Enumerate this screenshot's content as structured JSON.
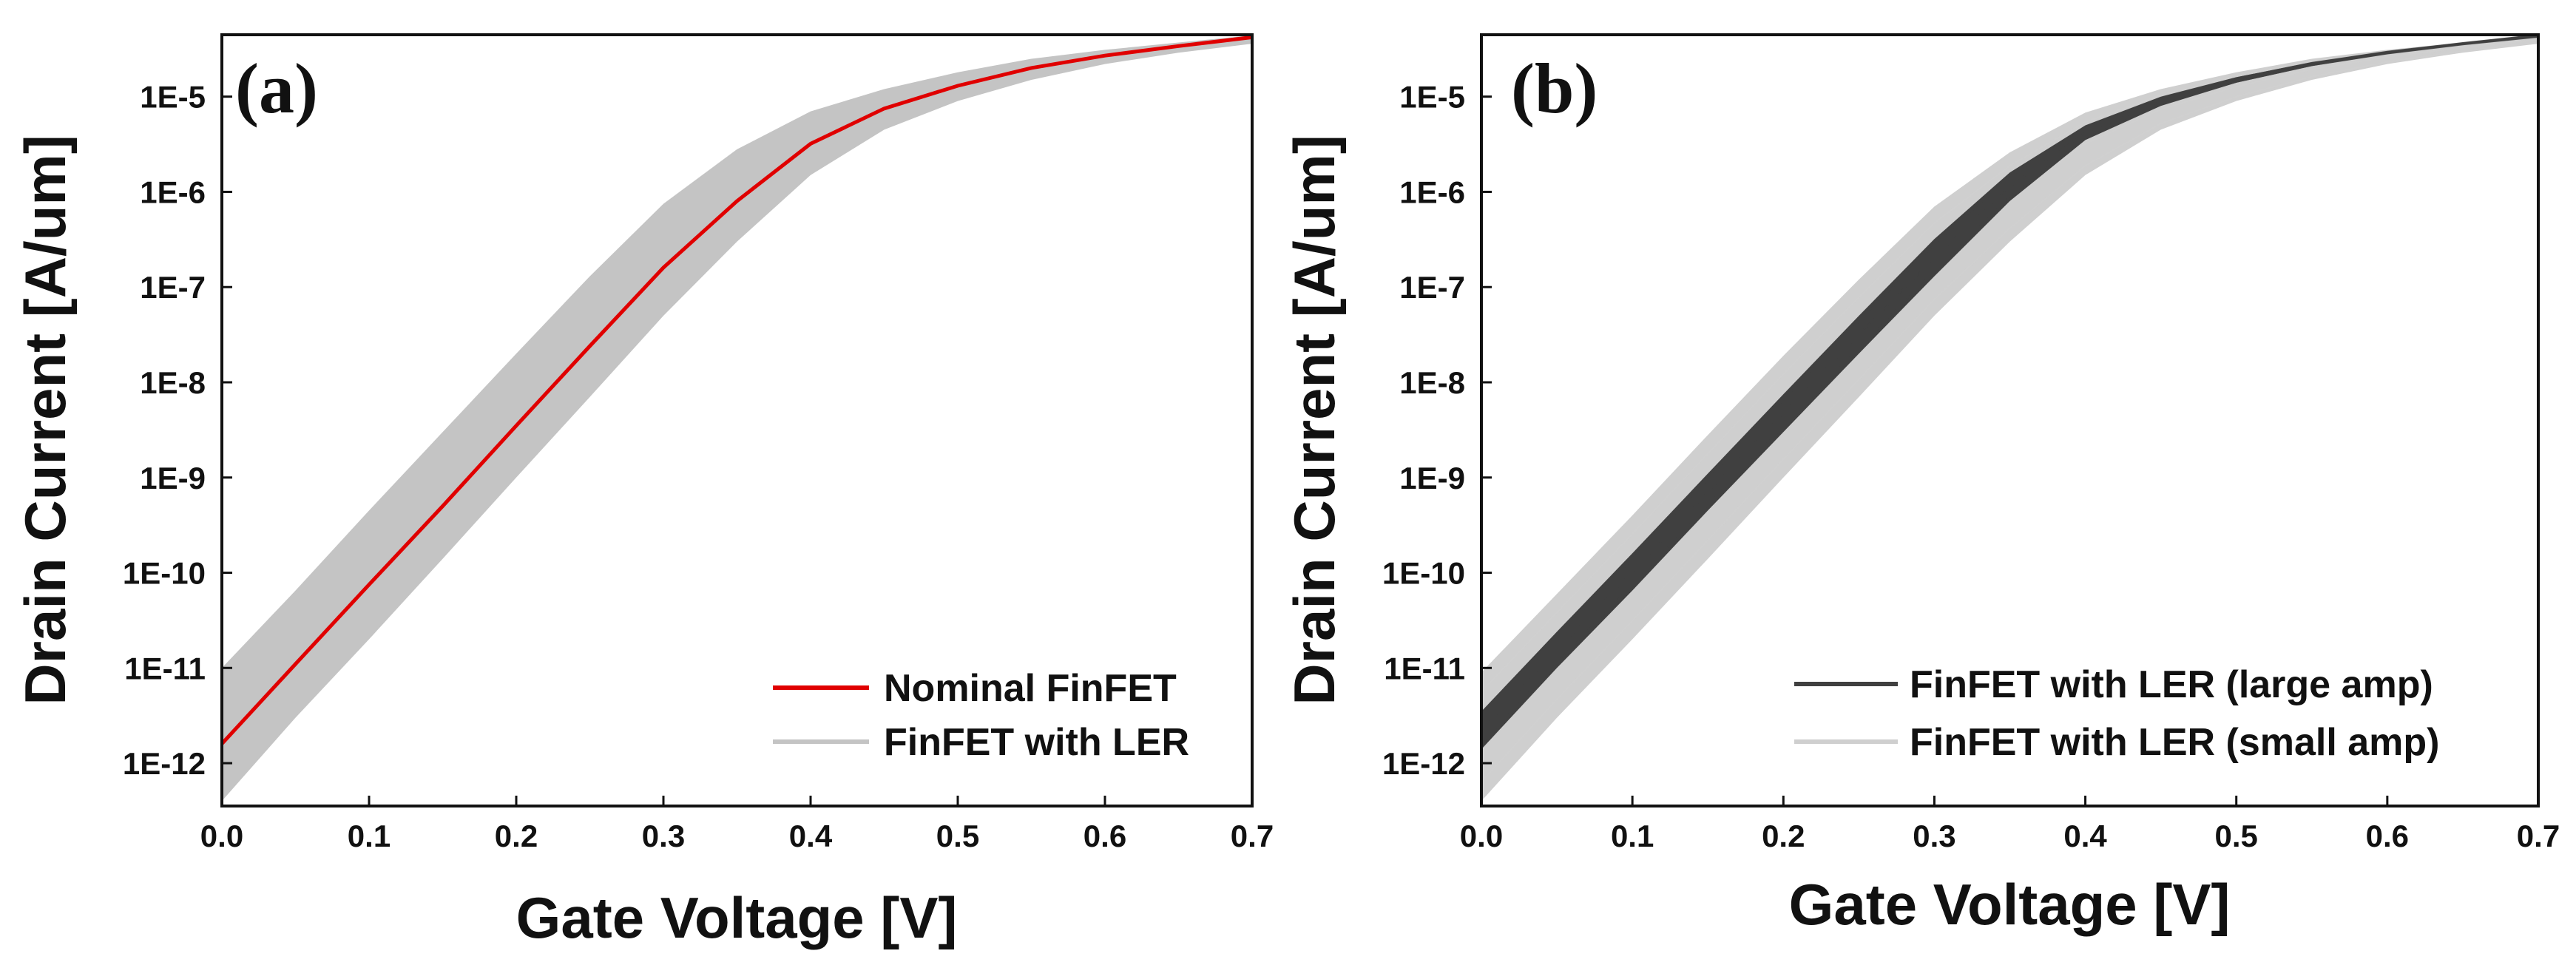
{
  "chart_data": [
    {
      "type": "line",
      "panel_label": "(a)",
      "xlabel": "Gate Voltage [V]",
      "ylabel": "Drain Current [A/um]",
      "xlim": [
        0.0,
        0.7
      ],
      "ylim_log10": [
        -12.45,
        -4.35
      ],
      "y_scale": "log",
      "x_ticks": [
        "0.0",
        "0.1",
        "0.2",
        "0.3",
        "0.4",
        "0.5",
        "0.6",
        "0.7"
      ],
      "y_ticks": [
        "1E-12",
        "1E-11",
        "1E-10",
        "1E-9",
        "1E-8",
        "1E-7",
        "1E-6",
        "1E-5"
      ],
      "grid": false,
      "legend_position": "bottom-right",
      "series": [
        {
          "name": "Nominal FinFET",
          "color": "#e00000",
          "x": [
            0.0,
            0.05,
            0.1,
            0.15,
            0.2,
            0.25,
            0.3,
            0.35,
            0.4,
            0.45,
            0.5,
            0.55,
            0.6,
            0.65,
            0.7
          ],
          "y": [
            1.6e-12,
            1.1e-11,
            7.5e-11,
            5e-10,
            3.5e-09,
            2.4e-08,
            1.6e-07,
            8e-07,
            3.2e-06,
            7.5e-06,
            1.3e-05,
            2e-05,
            2.7e-05,
            3.4e-05,
            4.2e-05
          ]
        },
        {
          "name": "FinFET with LER",
          "color": "#c4c4c4",
          "band": true,
          "x": [
            0.0,
            0.05,
            0.1,
            0.15,
            0.2,
            0.25,
            0.3,
            0.35,
            0.4,
            0.45,
            0.5,
            0.55,
            0.6,
            0.65,
            0.7
          ],
          "y_low": [
            4e-13,
            3e-12,
            2e-11,
            1.4e-10,
            1e-09,
            7e-09,
            5e-08,
            3e-07,
            1.5e-06,
            4.5e-06,
            9e-06,
            1.5e-05,
            2.2e-05,
            2.9e-05,
            3.6e-05
          ],
          "y_high": [
            1e-11,
            6.5e-11,
            4.5e-10,
            3e-09,
            2e-08,
            1.3e-07,
            7.5e-07,
            2.8e-06,
            7e-06,
            1.2e-05,
            1.8e-05,
            2.5e-05,
            3.1e-05,
            3.7e-05,
            4.4e-05
          ]
        }
      ]
    },
    {
      "type": "line",
      "panel_label": "(b)",
      "xlabel": "Gate Voltage [V]",
      "ylabel": "Drain Current [A/um]",
      "xlim": [
        0.0,
        0.7
      ],
      "ylim_log10": [
        -12.45,
        -4.35
      ],
      "y_scale": "log",
      "x_ticks": [
        "0.0",
        "0.1",
        "0.2",
        "0.3",
        "0.4",
        "0.5",
        "0.6",
        "0.7"
      ],
      "y_ticks": [
        "1E-12",
        "1E-11",
        "1E-10",
        "1E-9",
        "1E-8",
        "1E-7",
        "1E-6",
        "1E-5"
      ],
      "grid": false,
      "legend_position": "bottom-right",
      "series": [
        {
          "name": "FinFET with LER (small amp)",
          "color": "#cfcfcf",
          "band": true,
          "x": [
            0.0,
            0.05,
            0.1,
            0.15,
            0.2,
            0.25,
            0.3,
            0.35,
            0.4,
            0.45,
            0.5,
            0.55,
            0.6,
            0.65,
            0.7
          ],
          "y_low": [
            4e-13,
            3e-12,
            2e-11,
            1.4e-10,
            1e-09,
            7e-09,
            5e-08,
            3e-07,
            1.5e-06,
            4.5e-06,
            9e-06,
            1.5e-05,
            2.2e-05,
            2.9e-05,
            3.6e-05
          ],
          "y_high": [
            9e-12,
            6e-11,
            4e-10,
            2.8e-09,
            1.9e-08,
            1.2e-07,
            7e-07,
            2.6e-06,
            6.8e-06,
            1.2e-05,
            1.8e-05,
            2.5e-05,
            3.1e-05,
            3.7e-05,
            4.4e-05
          ]
        },
        {
          "name": "FinFET with LER (large amp)",
          "color": "#404040",
          "band": true,
          "x": [
            0.0,
            0.05,
            0.1,
            0.15,
            0.2,
            0.25,
            0.3,
            0.35,
            0.4,
            0.45,
            0.5,
            0.55,
            0.6,
            0.65,
            0.7
          ],
          "y_low": [
            1.4e-12,
            1e-11,
            6.5e-11,
            4.5e-10,
            3e-09,
            2e-08,
            1.3e-07,
            8e-07,
            3.5e-06,
            8e-06,
            1.4e-05,
            2.1e-05,
            2.8e-05,
            3.5e-05,
            4.2e-05
          ],
          "y_high": [
            3.5e-12,
            2.4e-11,
            1.6e-10,
            1.1e-09,
            7.5e-09,
            5e-08,
            3.2e-07,
            1.6e-06,
            5e-06,
            1e-05,
            1.6e-05,
            2.3e-05,
            3e-05,
            3.7e-05,
            4.5e-05
          ]
        }
      ]
    }
  ]
}
